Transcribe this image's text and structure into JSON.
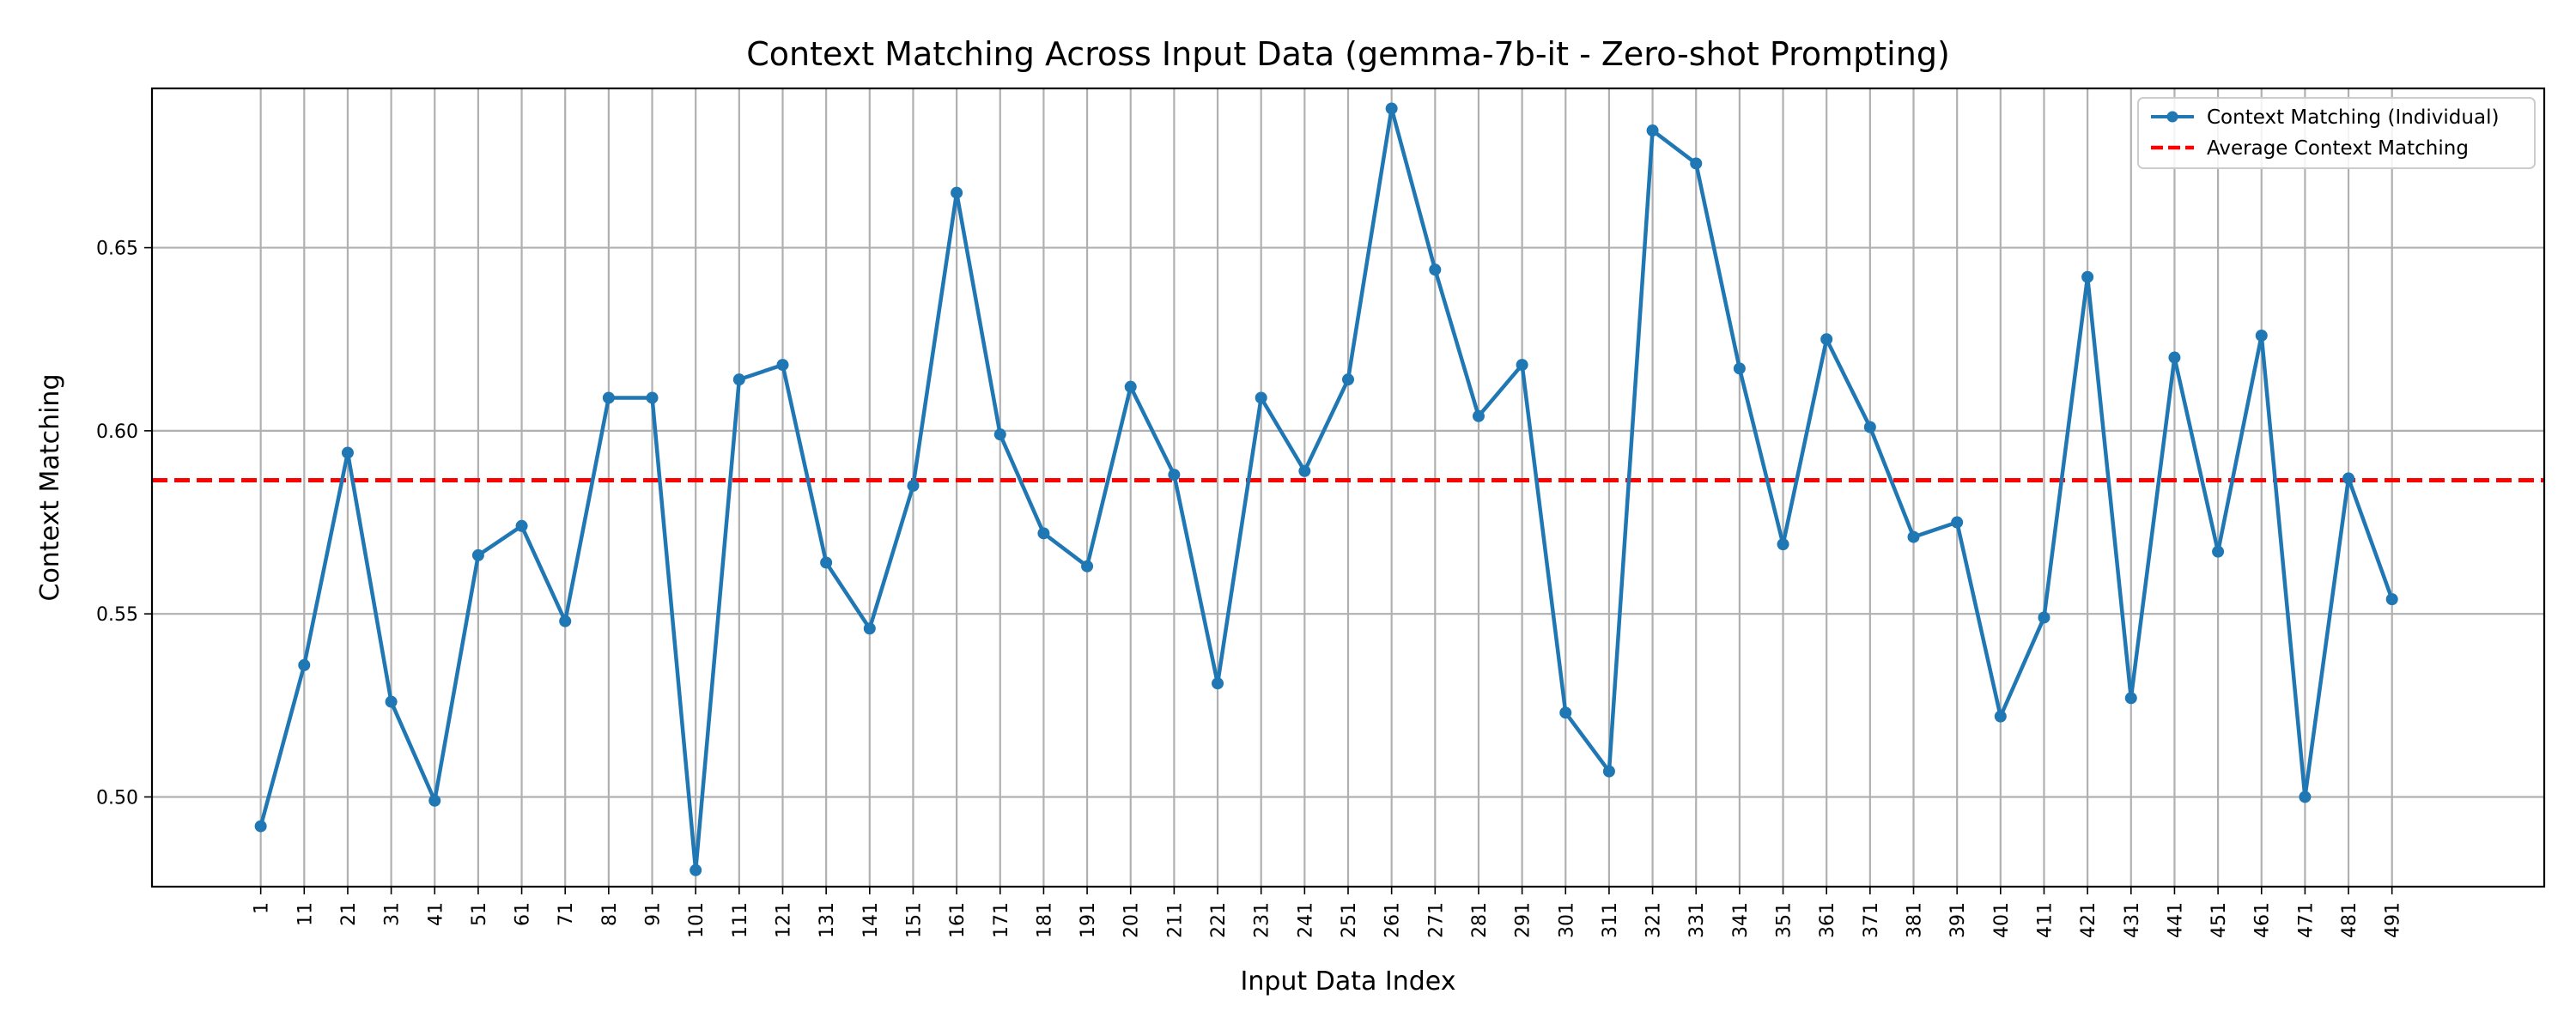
{
  "chart_data": {
    "type": "line",
    "title": "Context Matching Across Input Data (gemma-7b-it - Zero-shot Prompting)",
    "xlabel": "Input Data Index",
    "ylabel": "Context Matching",
    "xlim": [
      -2.5,
      52.5
    ],
    "ylim": [
      0.4755,
      0.6935
    ],
    "yticks": [
      0.5,
      0.55,
      0.6,
      0.65
    ],
    "ytick_labels": [
      "0.50",
      "0.55",
      "0.60",
      "0.65"
    ],
    "xtick_labels": [
      "1",
      "11",
      "21",
      "31",
      "41",
      "51",
      "61",
      "71",
      "81",
      "91",
      "101",
      "111",
      "121",
      "131",
      "141",
      "151",
      "161",
      "171",
      "181",
      "191",
      "201",
      "211",
      "221",
      "231",
      "241",
      "251",
      "261",
      "271",
      "281",
      "291",
      "301",
      "311",
      "321",
      "331",
      "341",
      "351",
      "361",
      "371",
      "381",
      "391",
      "401",
      "411",
      "421",
      "431",
      "441",
      "451",
      "461",
      "471",
      "481",
      "491"
    ],
    "grid": true,
    "legend_position": "upper right",
    "series": [
      {
        "name": "Context Matching (Individual)",
        "color": "#1f77b4",
        "style": "solid-line-with-dot-markers",
        "values": [
          0.492,
          0.536,
          0.594,
          0.526,
          0.499,
          0.566,
          0.574,
          0.548,
          0.609,
          0.609,
          0.48,
          0.614,
          0.618,
          0.564,
          0.546,
          0.585,
          0.665,
          0.599,
          0.572,
          0.563,
          0.612,
          0.588,
          0.531,
          0.609,
          0.589,
          0.614,
          0.688,
          0.644,
          0.604,
          0.618,
          0.523,
          0.507,
          0.682,
          0.673,
          0.617,
          0.569,
          0.625,
          0.601,
          0.571,
          0.575,
          0.522,
          0.549,
          0.642,
          0.527,
          0.62,
          0.567,
          0.626,
          0.5,
          0.587,
          0.554
        ]
      },
      {
        "name": "Average Context Matching",
        "color": "#ff0000",
        "style": "dashed-horizontal-line",
        "value": 0.5865
      }
    ]
  }
}
